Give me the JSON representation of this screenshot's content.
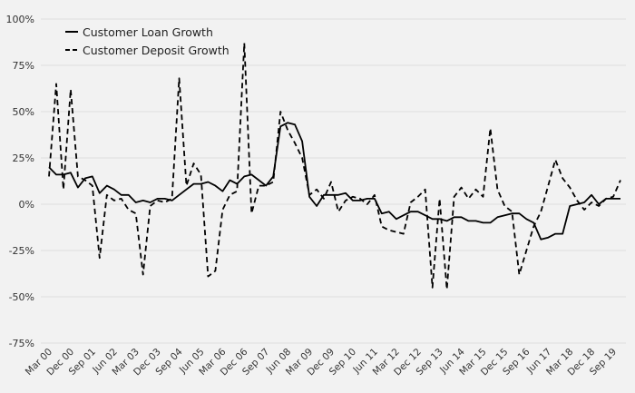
{
  "chart_data": {
    "type": "line",
    "title": "",
    "xlabel": "",
    "ylabel": "",
    "ylim": [
      -0.75,
      1.0
    ],
    "y_ticks": [
      1.0,
      0.75,
      0.5,
      0.25,
      0.0,
      -0.25,
      -0.5,
      -0.75
    ],
    "y_tick_labels": [
      "100%",
      "75%",
      "50%",
      "25%",
      "0%",
      "-25%",
      "-50%",
      "-75%"
    ],
    "grid": true,
    "legend_position": "top-left",
    "x_tick_labels": [
      "Mar 00",
      "Dec 00",
      "Sep 01",
      "Jun 02",
      "Mar 03",
      "Dec 03",
      "Sep 04",
      "Jun 05",
      "Mar 06",
      "Dec 06",
      "Sep 07",
      "Jun 08",
      "Mar 09",
      "Dec 09",
      "Sep 10",
      "Jun 11",
      "Mar 12",
      "Dec 12",
      "Sep 13",
      "Jun 14",
      "Mar 15",
      "Dec 15",
      "Sep 16",
      "Jun 17",
      "Mar 18",
      "Dec 18",
      "Sep 19"
    ],
    "x": [
      "Mar 00",
      "Jun 00",
      "Sep 00",
      "Dec 00",
      "Mar 01",
      "Jun 01",
      "Sep 01",
      "Dec 01",
      "Mar 02",
      "Jun 02",
      "Sep 02",
      "Dec 02",
      "Mar 03",
      "Jun 03",
      "Sep 03",
      "Dec 03",
      "Mar 04",
      "Jun 04",
      "Sep 04",
      "Dec 04",
      "Mar 05",
      "Jun 05",
      "Sep 05",
      "Dec 05",
      "Mar 06",
      "Jun 06",
      "Sep 06",
      "Dec 06",
      "Mar 07",
      "Jun 07",
      "Sep 07",
      "Dec 07",
      "Mar 08",
      "Jun 08",
      "Sep 08",
      "Dec 08",
      "Mar 09",
      "Jun 09",
      "Sep 09",
      "Dec 09",
      "Mar 10",
      "Jun 10",
      "Sep 10",
      "Dec 10",
      "Mar 11",
      "Jun 11",
      "Sep 11",
      "Dec 11",
      "Mar 12",
      "Jun 12",
      "Sep 12",
      "Dec 12",
      "Mar 13",
      "Jun 13",
      "Sep 13",
      "Dec 13",
      "Mar 14",
      "Jun 14",
      "Sep 14",
      "Dec 14",
      "Mar 15",
      "Jun 15",
      "Sep 15",
      "Dec 15",
      "Mar 16",
      "Jun 16",
      "Sep 16",
      "Dec 16",
      "Mar 17",
      "Jun 17",
      "Sep 17",
      "Dec 17",
      "Mar 18",
      "Jun 18",
      "Sep 18",
      "Dec 18",
      "Mar 19",
      "Jun 19",
      "Sep 19",
      "Dec 19"
    ],
    "series": [
      {
        "name": "Customer Loan Growth",
        "style": "solid",
        "values": [
          0.2,
          0.16,
          0.16,
          0.17,
          0.09,
          0.14,
          0.15,
          0.06,
          0.1,
          0.08,
          0.05,
          0.05,
          0.01,
          0.02,
          0.01,
          0.03,
          0.03,
          0.02,
          0.05,
          0.08,
          0.11,
          0.11,
          0.12,
          0.1,
          0.07,
          0.13,
          0.11,
          0.15,
          0.16,
          0.13,
          0.1,
          0.15,
          0.42,
          0.44,
          0.43,
          0.34,
          0.04,
          -0.01,
          0.05,
          0.05,
          0.05,
          0.06,
          0.02,
          0.02,
          0.03,
          0.03,
          -0.05,
          -0.04,
          -0.08,
          -0.06,
          -0.04,
          -0.04,
          -0.06,
          -0.08,
          -0.08,
          -0.09,
          -0.07,
          -0.07,
          -0.09,
          -0.09,
          -0.1,
          -0.1,
          -0.07,
          -0.06,
          -0.05,
          -0.05,
          -0.08,
          -0.1,
          -0.19,
          -0.18,
          -0.16,
          -0.16,
          -0.01,
          0.0,
          0.01,
          0.05,
          0.0,
          0.03,
          0.03,
          0.03
        ]
      },
      {
        "name": "Customer Deposit Growth",
        "style": "dashed",
        "values": [
          0.15,
          0.65,
          0.08,
          0.62,
          0.15,
          0.13,
          0.1,
          -0.29,
          0.05,
          0.02,
          0.03,
          -0.03,
          -0.05,
          -0.38,
          -0.01,
          0.02,
          0.01,
          0.03,
          0.68,
          0.1,
          0.22,
          0.16,
          -0.39,
          -0.36,
          -0.03,
          0.05,
          0.07,
          0.87,
          -0.05,
          0.1,
          0.1,
          0.12,
          0.5,
          0.4,
          0.33,
          0.25,
          0.05,
          0.08,
          0.03,
          0.12,
          -0.04,
          0.02,
          0.04,
          0.03,
          0.0,
          0.05,
          -0.12,
          -0.14,
          -0.15,
          -0.16,
          0.01,
          0.04,
          0.08,
          -0.45,
          0.03,
          -0.46,
          0.04,
          0.09,
          0.03,
          0.08,
          0.04,
          0.41,
          0.08,
          -0.01,
          -0.04,
          -0.38,
          -0.25,
          -0.12,
          -0.04,
          0.1,
          0.24,
          0.14,
          0.09,
          0.02,
          -0.03,
          0.01,
          -0.01,
          0.03,
          0.04,
          0.13
        ]
      }
    ]
  }
}
